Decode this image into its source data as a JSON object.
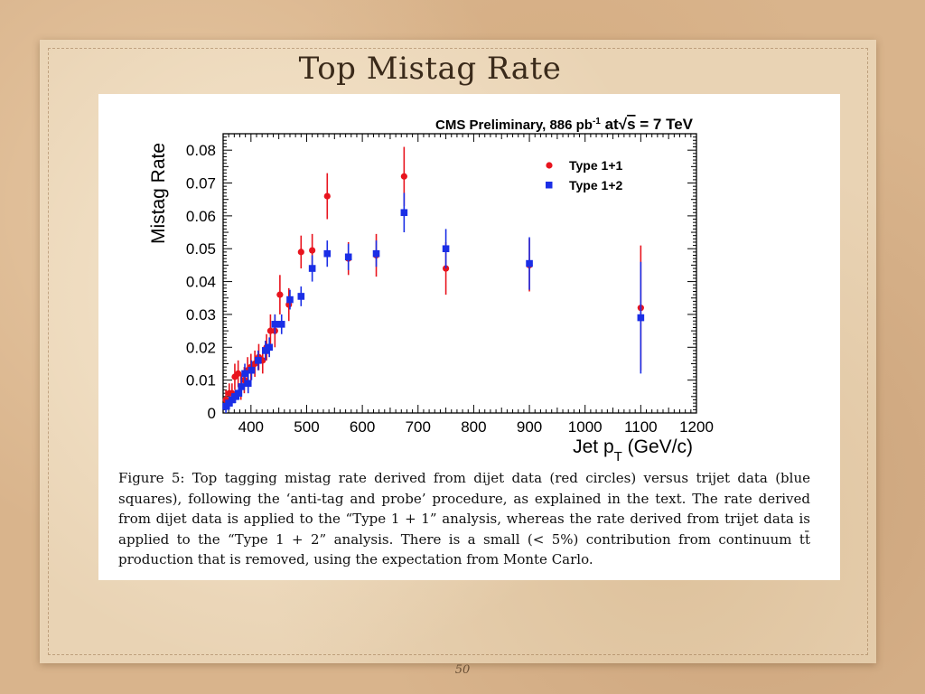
{
  "slide": {
    "title": "Top Mistag Rate",
    "page_number": "50"
  },
  "figure": {
    "caption": "Figure 5: Top tagging mistag rate derived from dijet data (red circles) versus trijet data (blue squares), following the ‘anti-tag and probe’ procedure, as explained in the text. The rate derived from dijet data is applied to the “Type 1 + 1” analysis, whereas the rate derived from trijet data is applied to the “Type 1 + 2” analysis. There is a small (< 5%) contribution from continuum tt̄ production that is removed, using the expectation from Monte Carlo."
  },
  "chart_data": {
    "type": "scatter",
    "title_parts": {
      "prefix": "CMS Preliminary, 886 pb",
      "exponent": "-1",
      "middle": " at",
      "sqrt_symbol": "√",
      "sqrt_arg": "s",
      "suffix": " = 7 TeV"
    },
    "xlabel_parts": {
      "main": "Jet p",
      "sub": "T",
      "unit": " (GeV/c)"
    },
    "ylabel": "Mistag Rate",
    "xlim": [
      350,
      1200
    ],
    "ylim": [
      0,
      0.085
    ],
    "x_ticks": [
      400,
      500,
      600,
      700,
      800,
      900,
      1000,
      1100,
      1200
    ],
    "y_ticks": [
      {
        "v": 0,
        "label": "0"
      },
      {
        "v": 0.01,
        "label": "0.01"
      },
      {
        "v": 0.02,
        "label": "0.02"
      },
      {
        "v": 0.03,
        "label": "0.03"
      },
      {
        "v": 0.04,
        "label": "0.04"
      },
      {
        "v": 0.05,
        "label": "0.05"
      },
      {
        "v": 0.06,
        "label": "0.06"
      },
      {
        "v": 0.07,
        "label": "0.07"
      },
      {
        "v": 0.08,
        "label": "0.08"
      }
    ],
    "legend_position": "top-right",
    "series": [
      {
        "name": "Type 1+1",
        "marker": "circle",
        "color": "#e8141e",
        "points": [
          {
            "x": 355,
            "y": 0.004,
            "err": 0.003
          },
          {
            "x": 361,
            "y": 0.006,
            "err": 0.003
          },
          {
            "x": 366,
            "y": 0.006,
            "err": 0.003
          },
          {
            "x": 371,
            "y": 0.011,
            "err": 0.004
          },
          {
            "x": 377,
            "y": 0.012,
            "err": 0.004
          },
          {
            "x": 382,
            "y": 0.008,
            "err": 0.004
          },
          {
            "x": 388,
            "y": 0.01,
            "err": 0.004
          },
          {
            "x": 394,
            "y": 0.013,
            "err": 0.004
          },
          {
            "x": 400,
            "y": 0.014,
            "err": 0.004
          },
          {
            "x": 407,
            "y": 0.015,
            "err": 0.004
          },
          {
            "x": 414,
            "y": 0.017,
            "err": 0.004
          },
          {
            "x": 421,
            "y": 0.016,
            "err": 0.004
          },
          {
            "x": 428,
            "y": 0.02,
            "err": 0.004
          },
          {
            "x": 435,
            "y": 0.025,
            "err": 0.005
          },
          {
            "x": 443,
            "y": 0.025,
            "err": 0.005
          },
          {
            "x": 452,
            "y": 0.036,
            "err": 0.006
          },
          {
            "x": 468,
            "y": 0.033,
            "err": 0.005
          },
          {
            "x": 490,
            "y": 0.049,
            "err": 0.005
          },
          {
            "x": 510,
            "y": 0.0495,
            "err": 0.005
          },
          {
            "x": 537,
            "y": 0.066,
            "err": 0.007
          },
          {
            "x": 575,
            "y": 0.047,
            "err": 0.005
          },
          {
            "x": 625,
            "y": 0.048,
            "err": 0.0065
          },
          {
            "x": 675,
            "y": 0.072,
            "err": 0.009
          },
          {
            "x": 750,
            "y": 0.044,
            "err": 0.008
          },
          {
            "x": 900,
            "y": 0.045,
            "err": 0.008
          },
          {
            "x": 1100,
            "y": 0.032,
            "err": 0.019
          }
        ]
      },
      {
        "name": "Type 1+2",
        "marker": "square",
        "color": "#1a2ee6",
        "points": [
          {
            "x": 355,
            "y": 0.002,
            "err": 0.002
          },
          {
            "x": 361,
            "y": 0.003,
            "err": 0.002
          },
          {
            "x": 366,
            "y": 0.004,
            "err": 0.002
          },
          {
            "x": 372,
            "y": 0.005,
            "err": 0.002
          },
          {
            "x": 378,
            "y": 0.006,
            "err": 0.002
          },
          {
            "x": 383,
            "y": 0.008,
            "err": 0.003
          },
          {
            "x": 389,
            "y": 0.012,
            "err": 0.003
          },
          {
            "x": 395,
            "y": 0.009,
            "err": 0.003
          },
          {
            "x": 401,
            "y": 0.013,
            "err": 0.003
          },
          {
            "x": 413,
            "y": 0.016,
            "err": 0.003
          },
          {
            "x": 426,
            "y": 0.019,
            "err": 0.003
          },
          {
            "x": 433,
            "y": 0.02,
            "err": 0.003
          },
          {
            "x": 443,
            "y": 0.027,
            "err": 0.003
          },
          {
            "x": 455,
            "y": 0.027,
            "err": 0.003
          },
          {
            "x": 470,
            "y": 0.0345,
            "err": 0.003
          },
          {
            "x": 490,
            "y": 0.0355,
            "err": 0.003
          },
          {
            "x": 510,
            "y": 0.044,
            "err": 0.004
          },
          {
            "x": 537,
            "y": 0.0485,
            "err": 0.004
          },
          {
            "x": 575,
            "y": 0.0475,
            "err": 0.004
          },
          {
            "x": 625,
            "y": 0.0485,
            "err": 0.004
          },
          {
            "x": 675,
            "y": 0.061,
            "err": 0.006
          },
          {
            "x": 750,
            "y": 0.05,
            "err": 0.006
          },
          {
            "x": 900,
            "y": 0.0455,
            "err": 0.008
          },
          {
            "x": 1100,
            "y": 0.029,
            "err": 0.017
          }
        ]
      }
    ]
  }
}
